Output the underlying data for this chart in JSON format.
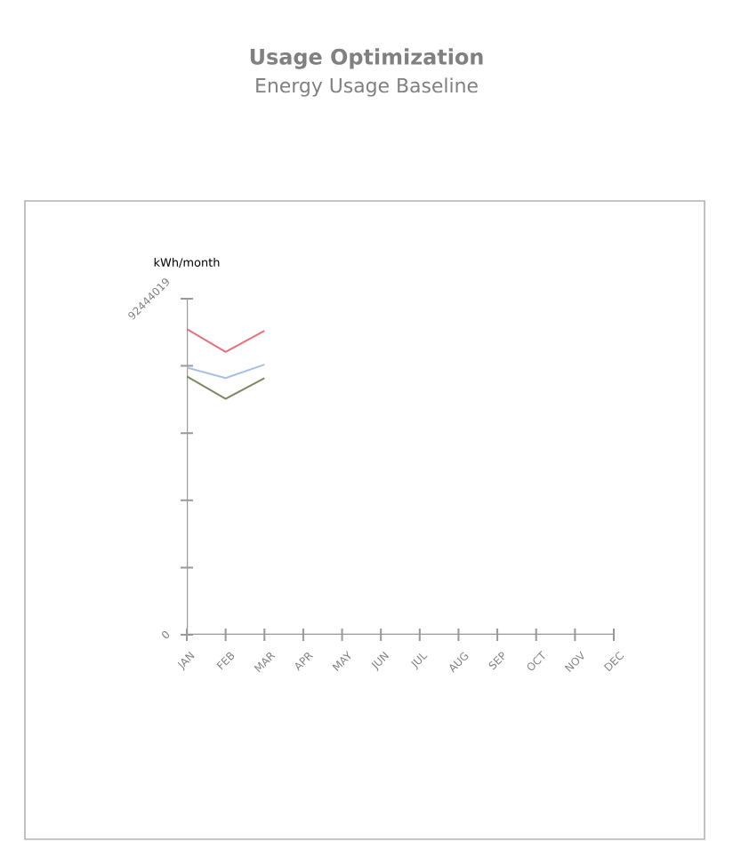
{
  "chart_data": {
    "type": "line",
    "title": "Usage Optimization",
    "subtitle": "Energy Usage Baseline",
    "ylabel": "kWh/month",
    "categories": [
      "JAN",
      "FEB",
      "MAR",
      "APR",
      "MAY",
      "JUN",
      "JUL",
      "AUG",
      "SEP",
      "OCT",
      "NOV",
      "DEC"
    ],
    "series": [
      {
        "color": "#e8707a",
        "values": [
          84100000,
          77800000,
          83600000,
          null,
          null,
          null,
          null,
          null,
          null,
          null,
          null,
          null
        ]
      },
      {
        "color": "#a8c0e0",
        "values": [
          73500000,
          70600000,
          74300000,
          null,
          null,
          null,
          null,
          null,
          null,
          null,
          null,
          null
        ]
      },
      {
        "color": "#7a8a60",
        "values": [
          71100000,
          64900000,
          70600000,
          null,
          null,
          null,
          null,
          null,
          null,
          null,
          null,
          null
        ]
      }
    ],
    "ylim": [
      0,
      92444019
    ],
    "yticks": [
      0,
      {
        "value": 18488804,
        "label": null
      },
      {
        "value": 36977608,
        "label": null
      },
      {
        "value": 55466411,
        "label": null
      },
      {
        "value": 73955215,
        "label": null
      },
      92444019
    ],
    "grid": false
  }
}
